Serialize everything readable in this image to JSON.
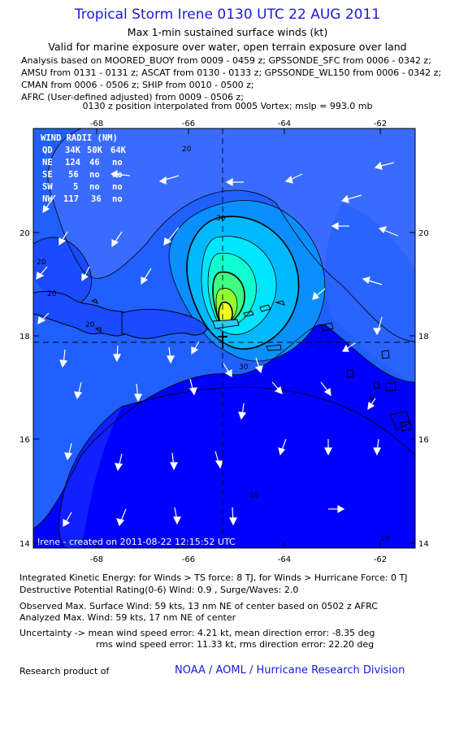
{
  "header": {
    "title": "Tropical Storm Irene 0130 UTC 22 AUG 2011",
    "subtitle1": "Max 1-min sustained surface winds (kt)",
    "subtitle2": "Valid for marine exposure over water, open terrain exposure over land",
    "analysis_lines": [
      "Analysis based on MOORED_BUOY from 0009 - 0459 z; GPSSONDE_SFC from 0006 - 0342 z;",
      "AMSU from 0131 - 0131 z; ASCAT from 0130 - 0133 z; GPSSONDE_WL150 from 0006 - 0342 z;",
      "CMAN from 0006 - 0506 z; SHIP from 0010 - 0500 z;",
      "AFRC (User-defined adjusted) from 0009 - 0506 z;"
    ],
    "position_note": "0130 z position interpolated from 0005 Vortex; mslp = 993.0 mb"
  },
  "map": {
    "lon_ticks": [
      "-68",
      "-66",
      "-64",
      "-62"
    ],
    "lat_ticks": [
      "20",
      "18",
      "16",
      "14"
    ],
    "center": {
      "lon": -65.5,
      "lat": 17.9
    },
    "wind_radii": {
      "title": "WIND RADII (NM)",
      "header": [
        "QD",
        "34K",
        "50K",
        "64K"
      ],
      "rows": [
        [
          "NE",
          "124",
          "46",
          "no"
        ],
        [
          "SE",
          "56",
          "no",
          "no"
        ],
        [
          "SW",
          "5",
          "no",
          "no"
        ],
        [
          "NW",
          "117",
          "36",
          "no"
        ]
      ]
    },
    "contour_labels": [
      "20",
      "20",
      "20",
      "20",
      "30",
      "30",
      "10",
      "10"
    ],
    "created": "Irene - created on 2011-08-22 12:15:52 UTC",
    "colors": {
      "ocean_deep": "#0000ff",
      "ocean_mid": "#2020ff",
      "ocean_light": "#3a5bff",
      "band_30": "#00a5ff",
      "band_40": "#00e0ff",
      "band_50": "#00ffb0",
      "band_60": "#30ff30",
      "band_70": "#f0ff20"
    }
  },
  "footer": {
    "ike": "Integrated Kinetic Energy:  for Winds > TS force: 8 TJ,  for Winds > Hurricane Force: 0 TJ",
    "dpr": "Destructive Potential Rating(0-6)   Wind: 0.9 , Surge/Waves: 2.0",
    "observed": "Observed Max. Surface Wind: 59 kts, 13 nm NE of center based on 0502 z AFRC",
    "analyzed": "Analyzed Max. Wind: 59 kts, 17 nm NE of center",
    "uncert1": "Uncertainty -> mean wind speed error: 4.21 kt,   mean direction error:  -8.35 deg",
    "uncert2": "rms wind speed error: 11.33 kt,   rms direction error: 22.20 deg",
    "research": "Research product of",
    "org": "NOAA / AOML / Hurricane Research Division"
  }
}
